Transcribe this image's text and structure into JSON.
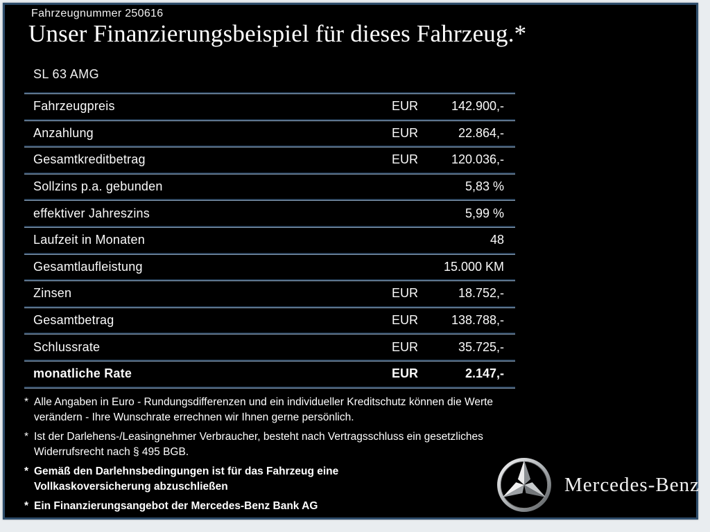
{
  "header": {
    "vehicle_number": "Fahrzeugnummer 250616",
    "title": "Unser Finanzierungsbeispiel für dieses Fahrzeug.*",
    "model": "SL 63 AMG"
  },
  "table": {
    "rows": [
      {
        "label": "Fahrzeugpreis",
        "currency": "EUR",
        "value": "142.900,-",
        "bold": false
      },
      {
        "label": "Anzahlung",
        "currency": "EUR",
        "value": "22.864,-",
        "bold": false
      },
      {
        "label": "Gesamtkreditbetrag",
        "currency": "EUR",
        "value": "120.036,-",
        "bold": false
      },
      {
        "label": "Sollzins p.a. gebunden",
        "currency": "",
        "value": "5,83 %",
        "bold": false
      },
      {
        "label": "effektiver Jahreszins",
        "currency": "",
        "value": "5,99 %",
        "bold": false
      },
      {
        "label": "Laufzeit in Monaten",
        "currency": "",
        "value": "48",
        "bold": false
      },
      {
        "label": "Gesamtlaufleistung",
        "currency": "",
        "value": "15.000 KM",
        "bold": false
      },
      {
        "label": "Zinsen",
        "currency": "EUR",
        "value": "18.752,-",
        "bold": false
      },
      {
        "label": "Gesamtbetrag",
        "currency": "EUR",
        "value": "138.788,-",
        "bold": false
      },
      {
        "label": "Schlussrate",
        "currency": "EUR",
        "value": "35.725,-",
        "bold": false
      },
      {
        "label": "monatliche Rate",
        "currency": "EUR",
        "value": "2.147,-",
        "bold": true
      }
    ]
  },
  "footnotes": [
    {
      "marker": "*",
      "text": "Alle Angaben in Euro - Rundungsdifferenzen und ein individueller Kreditschutz können die Werte verändern - Ihre Wunschrate errechnen wir Ihnen gerne persönlich.",
      "bold": false
    },
    {
      "marker": "*",
      "text": "Ist der Darlehens-/Leasingnehmer Verbraucher, besteht nach Vertragsschluss ein gesetzliches Widerrufsrecht nach § 495 BGB.",
      "bold": false
    },
    {
      "marker": "*",
      "text": "Gemäß den Darlehnsbedingungen ist für das Fahrzeug eine Vollkaskoversicherung abzuschließen",
      "bold": true
    },
    {
      "marker": "*",
      "text": "Ein Finanzierungsangebot der Mercedes-Benz Bank AG",
      "bold": true
    }
  ],
  "brand": {
    "logo_icon": "mercedes-star-icon",
    "name": "Mercedes-Benz"
  },
  "colors": {
    "panel_background": "#000000",
    "frame_border": "#2e4d6b",
    "page_margin": "#e9edf0",
    "text": "#ffffff",
    "separator_top": "#0c1a2a",
    "separator_mid": "#3e5b7a",
    "separator_bottom": "#a6b7c6",
    "logo_silver_light": "#f0f0f0",
    "logo_silver_dark": "#5a5a5a"
  }
}
